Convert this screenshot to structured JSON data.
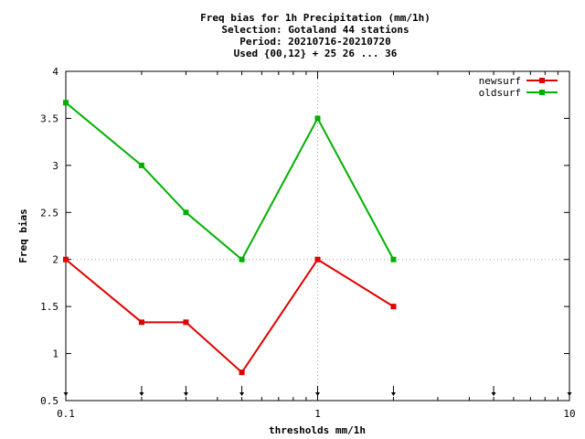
{
  "chart_data": {
    "type": "line",
    "title_lines": [
      "Freq bias  for 1h Precipitation (mm/1h)",
      "Selection: Gotaland     44 stations",
      "Period: 20210716-20210720",
      "Used {00,12} + 25 26 ... 36"
    ],
    "xlabel": "thresholds mm/1h",
    "ylabel": "Freq bias",
    "xscale": "log",
    "xlim": [
      0.1,
      10
    ],
    "ylim": [
      0.5,
      4
    ],
    "xticks": [
      0.1,
      1,
      10
    ],
    "xtick_labels": [
      "0.1",
      "1",
      "10"
    ],
    "yticks": [
      0.5,
      1,
      1.5,
      2,
      2.5,
      3,
      3.5,
      4
    ],
    "ytick_labels": [
      "0.5",
      "1",
      "1.5",
      "2",
      "2.5",
      "3",
      "3.5",
      "4"
    ],
    "grid": "dotted at x=1 and y=2",
    "legend_position": "top-right",
    "threshold_markers_x": [
      0.1,
      0.2,
      0.3,
      0.5,
      1,
      2,
      5,
      10
    ],
    "series": [
      {
        "name": "newsurf",
        "color": "#e00000",
        "x": [
          0.1,
          0.2,
          0.3,
          0.5,
          1,
          2
        ],
        "y": [
          2.0,
          1.333,
          1.333,
          0.8,
          2.0,
          1.5
        ]
      },
      {
        "name": "oldsurf",
        "color": "#00b000",
        "x": [
          0.1,
          0.2,
          0.3,
          0.5,
          1,
          2
        ],
        "y": [
          3.667,
          3.0,
          2.5,
          2.0,
          3.5,
          2.0
        ]
      }
    ]
  }
}
